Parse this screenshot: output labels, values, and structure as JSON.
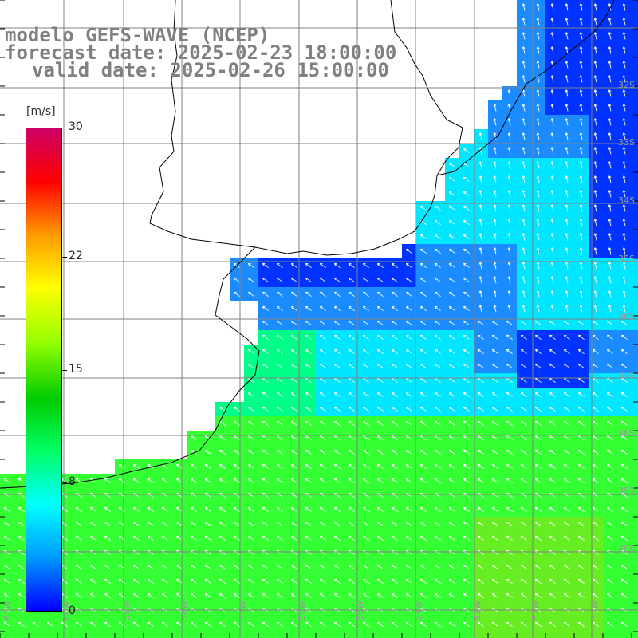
{
  "header": {
    "line1": "modelo GEFS-WAVE (NCEP)",
    "line2": "forecast date: 2025-02-23 18:00:00",
    "line3": "valid date: 2025-02-26 15:00:00"
  },
  "colorbar": {
    "unit": "[m/s]",
    "ticks": [
      "30",
      "22",
      "15",
      "8",
      "0"
    ],
    "tick_values": [
      30,
      22,
      15,
      8,
      0
    ],
    "min": 0,
    "max": 30,
    "colors": [
      "#0000ff",
      "#0099ff",
      "#00ffff",
      "#00ff66",
      "#00cc00",
      "#99ff00",
      "#ffff00",
      "#ff9900",
      "#ff0000",
      "#cc0066"
    ]
  },
  "axes": {
    "lat_labels": [
      "32S",
      "33S",
      "34S",
      "35S",
      "36S",
      "37S",
      "38S",
      "39S",
      "40S"
    ],
    "lon_labels": [
      "61W",
      "60W",
      "59W",
      "58W",
      "57W",
      "56W",
      "55W",
      "54W",
      "53W",
      "52W",
      "51W"
    ]
  },
  "map": {
    "field": "wind speed with direction arrows",
    "ocean_colors": {
      "calm": "#0033ff",
      "light": "#1a8cff",
      "moderate": "#00e6ff",
      "fresh": "#00ff88",
      "strong": "#33ff33",
      "max": "#66ee22"
    },
    "land_color": "#ffffff",
    "coast_color": "#000000",
    "grid_color": "#808080"
  }
}
